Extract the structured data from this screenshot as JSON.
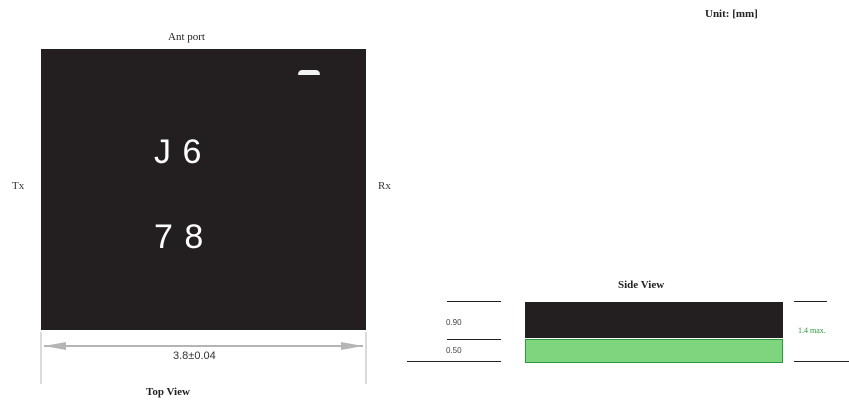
{
  "unit_label": "Unit: [mm]",
  "top_view": {
    "ant_port_label": "Ant port",
    "chip_line1": "J 6",
    "chip_line2": "7 8",
    "left_label": "Tx",
    "right_label": "Rx",
    "width_dimension": "3.8±0.04",
    "caption": "Top View"
  },
  "side_view": {
    "caption": "Side View",
    "top_layer_thickness": "0.90",
    "bottom_layer_thickness": "0.50",
    "max_label": "1.4 max."
  },
  "colors": {
    "chip_body": "#231f20",
    "substrate": "#7fd57d",
    "substrate_border": "#2a9a3a"
  }
}
